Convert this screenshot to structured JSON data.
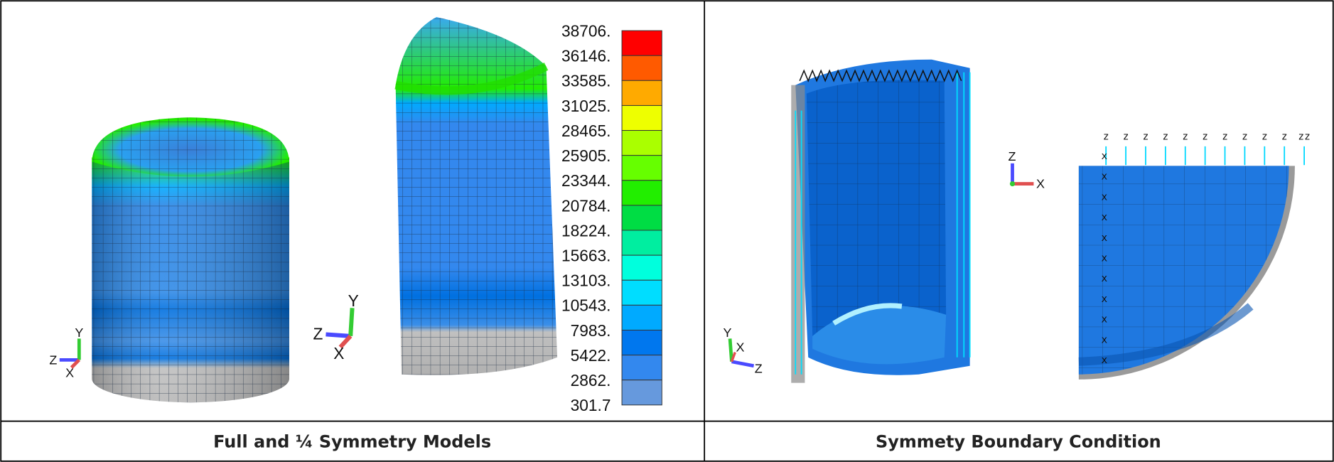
{
  "panels": [
    {
      "caption": "Full and ¼ Symmetry Models",
      "legend": {
        "labels": [
          "38706.",
          "36146.",
          "33585.",
          "31025.",
          "28465.",
          "25905.",
          "23344.",
          "20784.",
          "18224.",
          "15663.",
          "13103.",
          "10543.",
          "7983.",
          "5422.",
          "2862.",
          "301.7"
        ],
        "colors": [
          "#ff0000",
          "#ff5a00",
          "#ffaa00",
          "#eeff00",
          "#aaff00",
          "#66ff00",
          "#22ee00",
          "#00dd44",
          "#00eea0",
          "#00ffdd",
          "#00ddff",
          "#00aaff",
          "#0077ee",
          "#3388ee",
          "#6699dd",
          "#c0c0c0"
        ]
      },
      "triads": [
        {
          "h": "Z",
          "v": "Y",
          "d": "X"
        },
        {
          "h": "Z",
          "v": "Y",
          "d": "X"
        }
      ]
    },
    {
      "caption": "Symmety Boundary Condition",
      "triads": [
        {
          "h": "Z",
          "v": "Y",
          "d": "X"
        },
        {
          "h": "X",
          "v": "Z"
        }
      ],
      "bc_top": [
        "z",
        "z",
        "z",
        "z",
        "z",
        "z",
        "z",
        "z",
        "z",
        "z",
        "zz"
      ],
      "bc_left": [
        "x",
        "x",
        "x",
        "x",
        "x",
        "x",
        "x",
        "x",
        "x",
        "x",
        "x"
      ]
    }
  ]
}
